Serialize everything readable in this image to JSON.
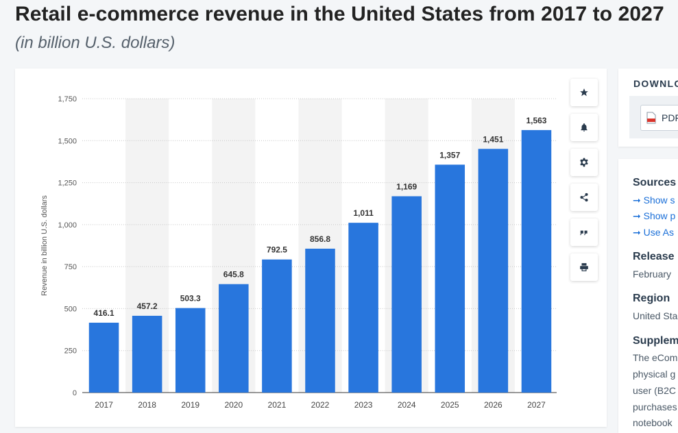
{
  "page": {
    "title": "Retail e-commerce revenue in the United States from 2017 to 2027",
    "subtitle": "(in billion U.S. dollars)"
  },
  "chart_data": {
    "type": "bar",
    "categories": [
      "2017",
      "2018",
      "2019",
      "2020",
      "2021",
      "2022",
      "2023",
      "2024",
      "2025",
      "2026",
      "2027"
    ],
    "values": [
      416.1,
      457.2,
      503.3,
      645.8,
      792.5,
      856.8,
      1011,
      1169,
      1357,
      1451,
      1563
    ],
    "value_labels": [
      "416.1",
      "457.2",
      "503.3",
      "645.8",
      "792.5",
      "856.8",
      "1,011",
      "1,169",
      "1,357",
      "1,451",
      "1,563"
    ],
    "yticks": [
      0,
      250,
      500,
      750,
      1000,
      1250,
      1500,
      1750
    ],
    "ytick_labels": [
      "0",
      "250",
      "500",
      "750",
      "1,000",
      "1,250",
      "1,500",
      "1,750"
    ],
    "ylim": [
      0,
      1750
    ],
    "ylabel": "Revenue in billion U.S. dollars",
    "xlabel": "",
    "grid": "horizontal dotted",
    "alternating_column_shading": true,
    "bar_color": "#2876dd"
  },
  "toolbar": {
    "buttons": [
      {
        "name": "favorite",
        "icon": "star-icon"
      },
      {
        "name": "notify",
        "icon": "bell-icon"
      },
      {
        "name": "settings",
        "icon": "gear-icon"
      },
      {
        "name": "share",
        "icon": "share-icon"
      },
      {
        "name": "cite",
        "icon": "quote-icon"
      },
      {
        "name": "print",
        "icon": "printer-icon"
      }
    ]
  },
  "download": {
    "heading": "DOWNLO",
    "pdf_label": "PDF",
    "pdf_icon": "pdf-file-icon"
  },
  "info": {
    "sources_heading": "Sources",
    "links": [
      "Show s",
      "Show p",
      "Use As"
    ],
    "link_icon": "arrow-right-icon",
    "release_heading": "Release",
    "release_value": "February",
    "region_heading": "Region",
    "region_value": "United Sta",
    "supplementary_heading": "Supplem",
    "supplementary_lines": [
      "The eCom",
      "physical g",
      "user (B2C",
      "purchases",
      "notebook"
    ]
  },
  "colors": {
    "bar": "#2876dd",
    "link": "#1a6fd8",
    "heading": "#2a3b4d",
    "title": "#222222"
  }
}
